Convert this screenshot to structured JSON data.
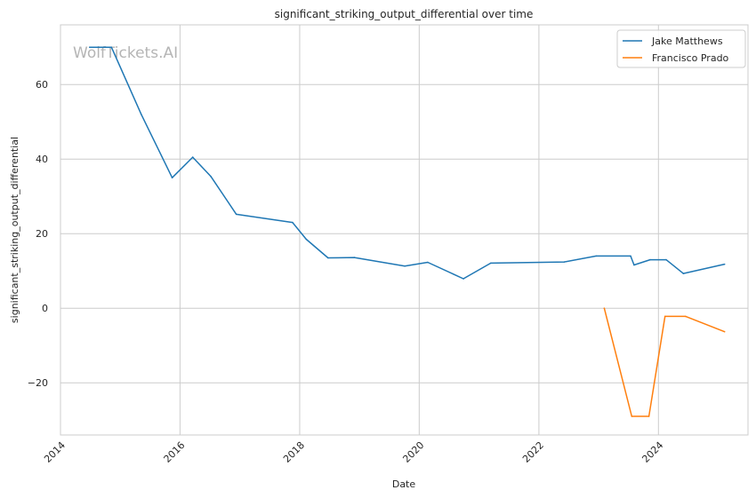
{
  "chart_data": {
    "type": "line",
    "title": "significant_striking_output_differential over time",
    "xlabel": "Date",
    "ylabel": "significant_striking_output_differential",
    "watermark": "WolfTickets.AI",
    "grid": true,
    "legend_position": "top-right",
    "xlim": [
      "2014-01-01",
      "2025-07-01"
    ],
    "ylim": [
      -34,
      76
    ],
    "x_ticks": [
      "2014",
      "2016",
      "2018",
      "2020",
      "2022",
      "2024"
    ],
    "y_ticks": [
      -20,
      0,
      20,
      40,
      60
    ],
    "series": [
      {
        "name": "Jake Matthews",
        "color": "#1f77b4",
        "points": [
          {
            "x": "2014-06-28",
            "y": 70
          },
          {
            "x": "2014-11-08",
            "y": 70
          },
          {
            "x": "2015-05-09",
            "y": 52
          },
          {
            "x": "2015-11-14",
            "y": 35
          },
          {
            "x": "2016-03-19",
            "y": 40.5
          },
          {
            "x": "2016-07-08",
            "y": 35.3
          },
          {
            "x": "2016-12-10",
            "y": 25.2
          },
          {
            "x": "2017-11-18",
            "y": 23
          },
          {
            "x": "2018-02-10",
            "y": 18.5
          },
          {
            "x": "2018-06-23",
            "y": 13.5
          },
          {
            "x": "2018-12-01",
            "y": 13.6
          },
          {
            "x": "2019-10-05",
            "y": 11.3
          },
          {
            "x": "2020-02-22",
            "y": 12.3
          },
          {
            "x": "2020-09-27",
            "y": 7.9
          },
          {
            "x": "2021-03-13",
            "y": 12.1
          },
          {
            "x": "2022-06-04",
            "y": 12.4
          },
          {
            "x": "2022-12-17",
            "y": 14
          },
          {
            "x": "2023-07-15",
            "y": 14
          },
          {
            "x": "2023-08-05",
            "y": 11.6
          },
          {
            "x": "2023-11-11",
            "y": 13
          },
          {
            "x": "2024-02-17",
            "y": 13
          },
          {
            "x": "2024-06-01",
            "y": 9.3
          },
          {
            "x": "2025-02-08",
            "y": 11.8
          }
        ]
      },
      {
        "name": "Francisco Prado",
        "color": "#ff7f0e",
        "points": [
          {
            "x": "2023-02-04",
            "y": 0
          },
          {
            "x": "2023-07-22",
            "y": -29
          },
          {
            "x": "2023-11-04",
            "y": -29
          },
          {
            "x": "2024-02-10",
            "y": -2.2
          },
          {
            "x": "2024-06-15",
            "y": -2.2
          },
          {
            "x": "2025-02-08",
            "y": -6.3
          }
        ]
      }
    ]
  }
}
